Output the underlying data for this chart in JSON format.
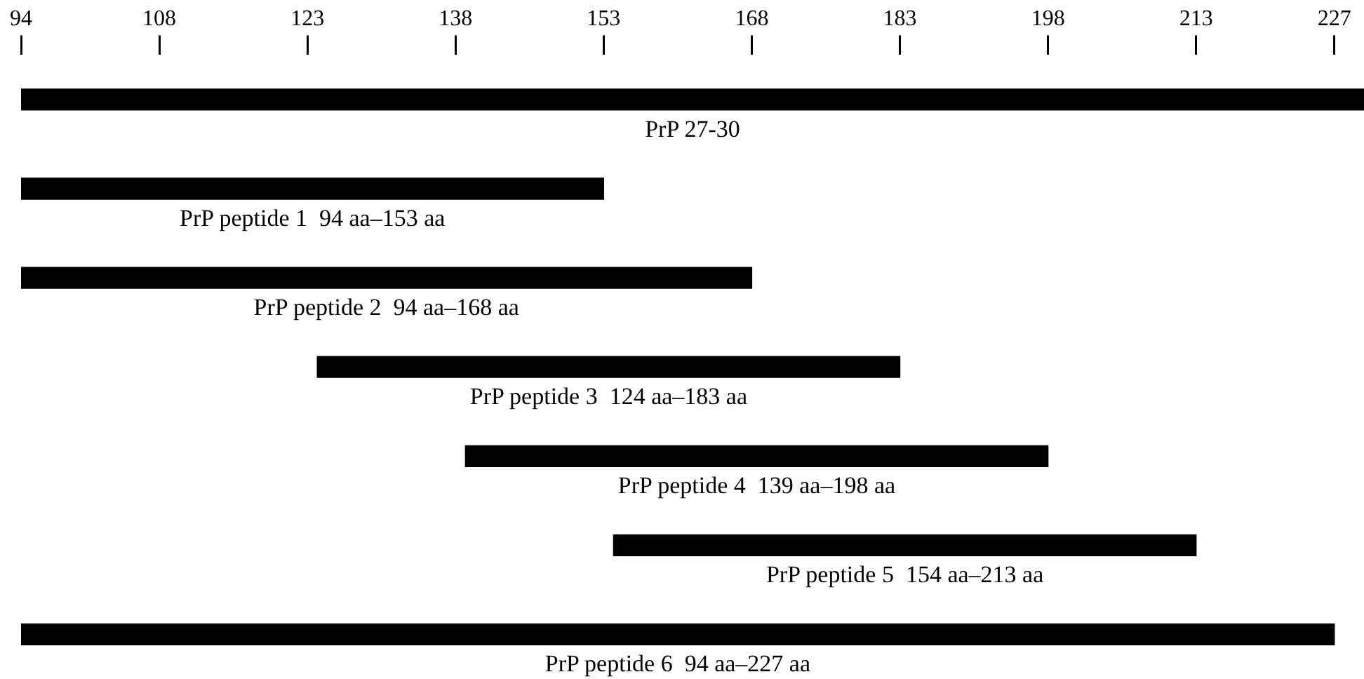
{
  "chart_data": {
    "type": "bar",
    "orientation": "horizontal",
    "color": "#000000",
    "categories": [
      "PrP 27-30",
      "PrP peptide 1  94 aa–153 aa",
      "PrP peptide 2  94 aa–168 aa",
      "PrP peptide 3  124 aa–183 aa",
      "PrP peptide 4  139 aa–198 aa",
      "PrP peptide 5  154 aa–213 aa",
      "PrP peptide 6  94 aa–227 aa"
    ],
    "base": [
      94,
      94,
      94,
      124,
      139,
      154,
      94
    ],
    "values": [
      136,
      59,
      74,
      59,
      59,
      59,
      133
    ],
    "xlim": [
      94,
      230
    ],
    "xticks": [
      94,
      108,
      123,
      138,
      153,
      168,
      183,
      198,
      213,
      227
    ],
    "grid": false
  }
}
